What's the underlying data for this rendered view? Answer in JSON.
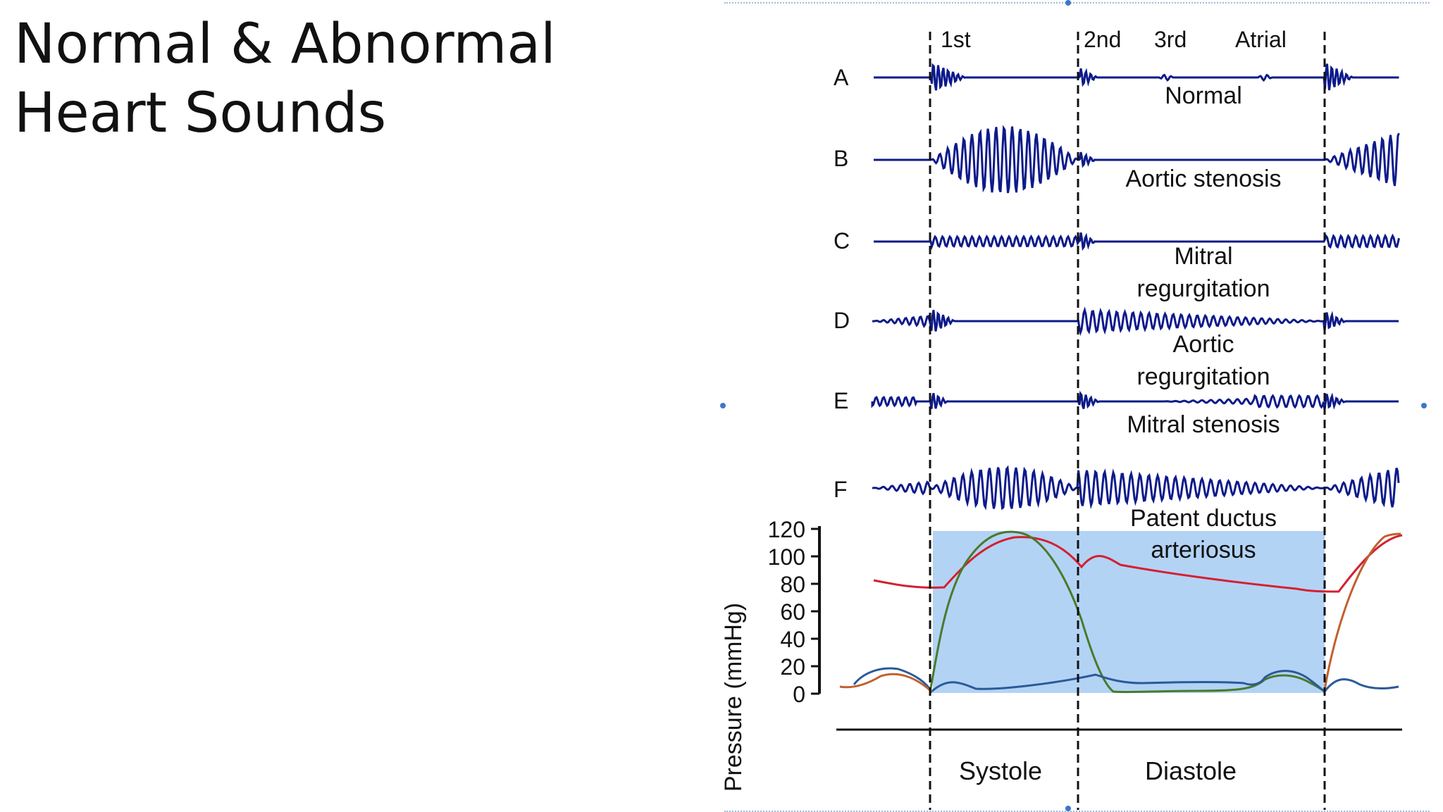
{
  "slide": {
    "title_line1": "Normal & Abnormal",
    "title_line2": "Heart Sounds"
  },
  "diagram": {
    "phase_labels": {
      "first": "1st",
      "second": "2nd",
      "third": "3rd",
      "atrial": "Atrial"
    },
    "rows": [
      {
        "letter": "A",
        "caption_lines": [
          "Normal"
        ]
      },
      {
        "letter": "B",
        "caption_lines": [
          "Aortic stenosis"
        ]
      },
      {
        "letter": "C",
        "caption_lines": [
          "Mitral",
          "regurgitation"
        ]
      },
      {
        "letter": "D",
        "caption_lines": [
          "Aortic",
          "regurgitation"
        ]
      },
      {
        "letter": "E",
        "caption_lines": [
          "Mitral stenosis"
        ]
      },
      {
        "letter": "F",
        "caption_lines": [
          "Patent ductus",
          "arteriosus"
        ]
      }
    ],
    "pressure_axis": {
      "label": "Pressure (mmHg)",
      "ticks": [
        "120",
        "100",
        "80",
        "60",
        "40",
        "20",
        "0"
      ]
    },
    "cycle_labels": {
      "systole": "Systole",
      "diastole": "Diastole"
    },
    "colors": {
      "waveform": "#0d1a8a",
      "aortic_pressure": "#d42030",
      "ventricular_pressure": "#4a7a2a",
      "atrial_pressure": "#2a5a9a",
      "orange_trace": "#c06030",
      "systole_shade": "#b3d3f5",
      "selection": "#3c78c8"
    }
  }
}
